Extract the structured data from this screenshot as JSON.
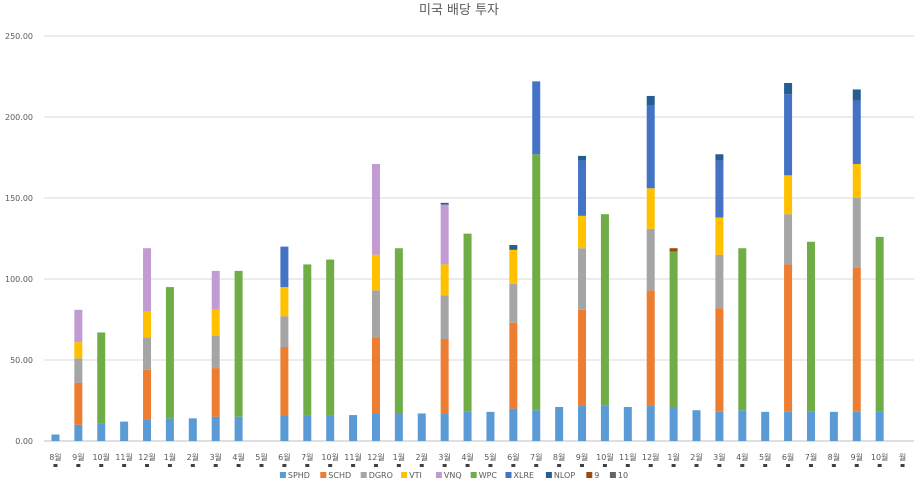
{
  "chart_data": {
    "type": "bar",
    "stacked": true,
    "title": "미국 배당 투자",
    "xlabel": "",
    "ylabel": "",
    "ylim": [
      0,
      250
    ],
    "yticks": [
      "0.00",
      "50.00",
      "100.00",
      "150.00",
      "200.00",
      "250.00"
    ],
    "grid": true,
    "legend_position": "bottom",
    "categories": [
      "8월",
      "9월",
      "10월",
      "11월",
      "12월",
      "1월",
      "2월",
      "3월",
      "4월",
      "5월",
      "6월",
      "7월",
      "10월",
      "11월",
      "12월",
      "1월",
      "2월",
      "3월",
      "4월",
      "5월",
      "6월",
      "7월",
      "8월",
      "9월",
      "10월",
      "11월",
      "12월",
      "1월",
      "2월",
      "3월",
      "4월",
      "5월",
      "6월",
      "7월",
      "8월",
      "9월",
      "10월",
      "월"
    ],
    "series": [
      {
        "name": "SPHD",
        "color": "#5B9BD5",
        "values": [
          4,
          10,
          11,
          12,
          13,
          14,
          14,
          15,
          15,
          0,
          16,
          16,
          16,
          16,
          17,
          17,
          17,
          17,
          18,
          18,
          20,
          19,
          21,
          22,
          22,
          21,
          22,
          21,
          19,
          18,
          19,
          18,
          18,
          18,
          18,
          18,
          18,
          0
        ]
      },
      {
        "name": "SCHD",
        "color": "#ED7D31",
        "values": [
          0,
          26,
          0,
          0,
          31,
          0,
          0,
          30,
          0,
          0,
          42,
          0,
          0,
          0,
          47,
          0,
          0,
          46,
          0,
          0,
          53,
          0,
          0,
          59,
          0,
          0,
          71,
          0,
          0,
          64,
          0,
          0,
          91,
          0,
          0,
          89,
          0,
          0
        ]
      },
      {
        "name": "DGRO",
        "color": "#A5A5A5",
        "values": [
          0,
          15,
          0,
          0,
          20,
          0,
          0,
          20,
          0,
          0,
          19,
          0,
          0,
          0,
          29,
          0,
          0,
          27,
          0,
          0,
          24,
          0,
          0,
          38,
          0,
          0,
          38,
          0,
          0,
          33,
          0,
          0,
          31,
          0,
          0,
          43,
          0,
          0
        ]
      },
      {
        "name": "VTI",
        "color": "#FFC000",
        "values": [
          0,
          10,
          0,
          0,
          16,
          0,
          0,
          16,
          0,
          0,
          18,
          0,
          0,
          0,
          22,
          0,
          0,
          19,
          0,
          0,
          21,
          0,
          0,
          20,
          0,
          0,
          25,
          0,
          0,
          23,
          0,
          0,
          24,
          0,
          0,
          21,
          0,
          0
        ]
      },
      {
        "name": "VNQ",
        "color": "#C39BD3",
        "values": [
          0,
          20,
          0,
          0,
          39,
          0,
          0,
          24,
          0,
          0,
          0,
          0,
          0,
          0,
          56,
          0,
          0,
          37,
          0,
          0,
          0,
          0,
          0,
          0,
          0,
          0,
          0,
          0,
          0,
          0,
          0,
          0,
          0,
          0,
          0,
          0,
          0,
          0
        ]
      },
      {
        "name": "WPC",
        "color": "#70AD47",
        "values": [
          0,
          0,
          56,
          0,
          0,
          81,
          0,
          0,
          90,
          0,
          0,
          93,
          96,
          0,
          0,
          102,
          0,
          0,
          110,
          0,
          0,
          158,
          0,
          0,
          118,
          0,
          0,
          96,
          0,
          0,
          100,
          0,
          0,
          105,
          0,
          0,
          108,
          0
        ]
      },
      {
        "name": "XLRE",
        "color": "#4472C4",
        "values": [
          0,
          0,
          0,
          0,
          0,
          0,
          0,
          0,
          0,
          0,
          25,
          0,
          0,
          0,
          0,
          0,
          0,
          0,
          0,
          0,
          0,
          45,
          0,
          34,
          0,
          0,
          51,
          0,
          0,
          35,
          0,
          0,
          50,
          0,
          0,
          39,
          0,
          0
        ]
      },
      {
        "name": "NLOP",
        "color": "#255E91",
        "values": [
          0,
          0,
          0,
          0,
          0,
          0,
          0,
          0,
          0,
          0,
          0,
          0,
          0,
          0,
          0,
          0,
          0,
          1,
          0,
          0,
          3,
          0,
          0,
          3,
          0,
          0,
          6,
          0,
          0,
          4,
          0,
          0,
          7,
          0,
          0,
          7,
          0,
          0
        ]
      },
      {
        "name": "9",
        "color": "#9E480E",
        "values": [
          0,
          0,
          0,
          0,
          0,
          0,
          0,
          0,
          0,
          0,
          0,
          0,
          0,
          0,
          0,
          0,
          0,
          0,
          0,
          0,
          0,
          0,
          0,
          0,
          0,
          0,
          0,
          2,
          0,
          0,
          0,
          0,
          0,
          0,
          0,
          0,
          0,
          0
        ]
      },
      {
        "name": "10",
        "color": "#636363",
        "values": [
          0,
          0,
          0,
          0,
          0,
          0,
          0,
          0,
          0,
          0,
          0,
          0,
          0,
          0,
          0,
          0,
          0,
          0,
          0,
          0,
          0,
          0,
          0,
          0,
          0,
          0,
          0,
          0,
          0,
          0,
          0,
          0,
          0,
          0,
          0,
          0,
          0,
          0
        ]
      }
    ]
  }
}
